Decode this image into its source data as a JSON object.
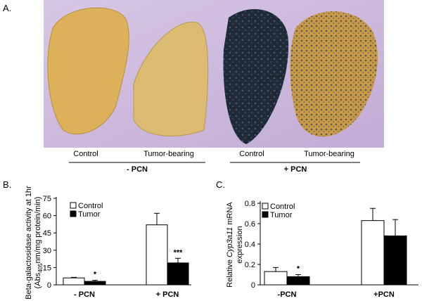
{
  "panel_labels": [
    "A.",
    "B.",
    "C."
  ],
  "photo": {
    "labels": [
      "Control",
      "Tumor-bearing",
      "Control",
      "Tumor-bearing"
    ],
    "groups": [
      "- PCN",
      "+ PCN"
    ]
  },
  "chart_data": [
    {
      "type": "bar",
      "ylabel": [
        [
          "Beta-galactosidase activity at 1hr"
        ],
        [
          "(Abs",
          "405",
          "nm/mg protein/min)"
        ]
      ],
      "categories": [
        "- PCN",
        "+ PCN"
      ],
      "series": [
        {
          "name": "Control",
          "color": "#ffffff",
          "values": [
            6,
            52
          ],
          "errors": [
            0.5,
            10
          ]
        },
        {
          "name": "Tumor",
          "color": "#000000",
          "values": [
            3,
            19
          ],
          "errors": [
            1,
            4
          ],
          "annotations": [
            "*",
            "***"
          ]
        }
      ],
      "ylim": [
        0,
        75
      ],
      "yticks": [
        0,
        15,
        30,
        45,
        60,
        75
      ]
    },
    {
      "type": "bar",
      "ylabel": [
        [
          "Relative ",
          "Cyp3a11",
          " mRNA"
        ],
        [
          "expression"
        ]
      ],
      "categories": [
        "-PCN",
        "+PCN"
      ],
      "series": [
        {
          "name": "Control",
          "color": "#ffffff",
          "values": [
            0.13,
            0.63
          ],
          "errors": [
            0.04,
            0.12
          ]
        },
        {
          "name": "Tumor",
          "color": "#000000",
          "values": [
            0.08,
            0.48
          ],
          "errors": [
            0.02,
            0.16
          ],
          "annotations": [
            "*",
            null
          ]
        }
      ],
      "ylim": [
        0,
        0.8
      ],
      "yticks": [
        0,
        0.2,
        0.4,
        0.6,
        0.8
      ]
    }
  ]
}
